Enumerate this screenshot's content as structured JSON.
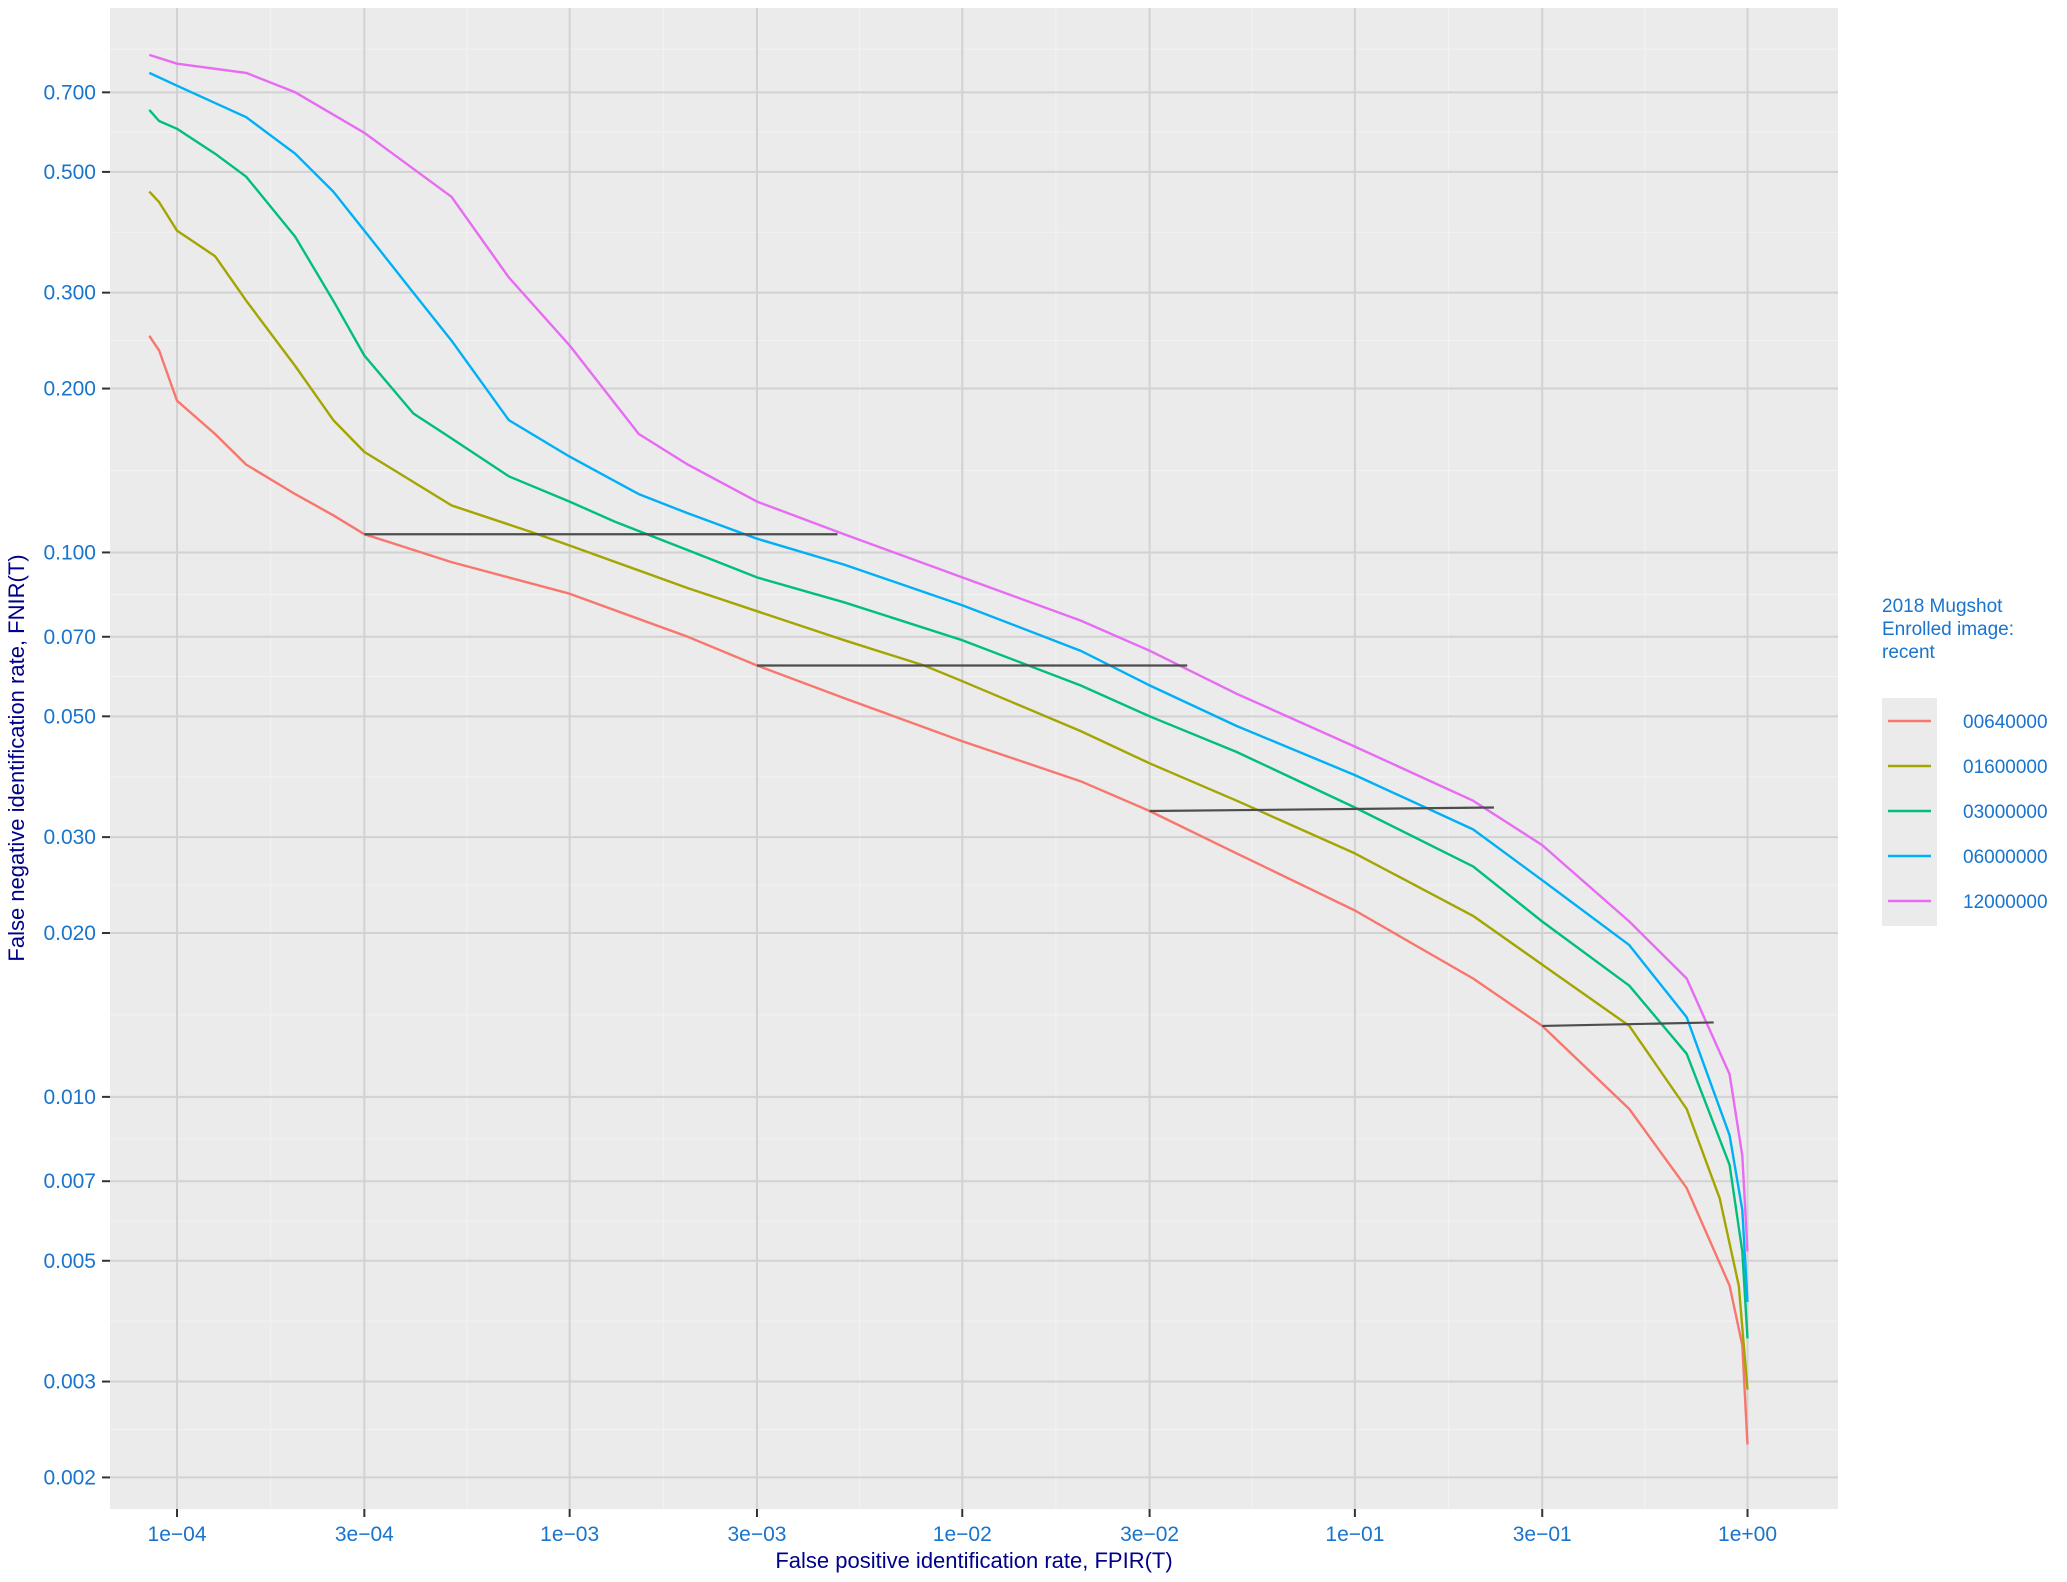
{
  "chart_data": {
    "type": "line",
    "xlabel": "False positive identification rate, FPIR(T)",
    "ylabel": "False negative identification rate, FNIR(T)",
    "x_scale": "log10",
    "y_scale": "log10",
    "xlim": [
      6.75e-05,
      1.7
    ],
    "ylim": [
      0.00175,
      1.0
    ],
    "x_ticks": [
      0.0001,
      0.0003,
      0.001,
      0.003,
      0.01,
      0.03,
      0.1,
      0.3,
      1
    ],
    "x_tick_labels": [
      "1e−04",
      "3e−04",
      "1e−03",
      "3e−03",
      "1e−02",
      "3e−02",
      "1e−01",
      "3e−01",
      "1e+00"
    ],
    "y_ticks": [
      0.002,
      0.003,
      0.005,
      0.007,
      0.01,
      0.02,
      0.03,
      0.05,
      0.07,
      0.1,
      0.2,
      0.3,
      0.5,
      0.7
    ],
    "y_tick_labels": [
      "0.002",
      "0.003",
      "0.005",
      "0.007",
      "0.010",
      "0.020",
      "0.030",
      "0.050",
      "0.070",
      "0.100",
      "0.200",
      "0.300",
      "0.500",
      "0.700"
    ],
    "grid": true,
    "legend": {
      "title_lines": [
        "2018 Mugshot",
        "Enrolled image:",
        "recent"
      ],
      "position": "right"
    },
    "colors": {
      "panel_background": "#EBEBEB",
      "major_grid": "#D2D2D2",
      "minor_grid": "#F3F3F3",
      "tick_text": "#1874CD",
      "axis_title": "#00008B",
      "connector": "#4D4D4D"
    },
    "series": [
      {
        "name": "00640000",
        "color": "#F8766D",
        "points": [
          [
            8.5e-05,
            0.25
          ],
          [
            9e-05,
            0.235
          ],
          [
            0.0001,
            0.19
          ],
          [
            0.000125,
            0.165
          ],
          [
            0.00015,
            0.145
          ],
          [
            0.0002,
            0.128
          ],
          [
            0.00025,
            0.117
          ],
          [
            0.0003,
            0.108
          ],
          [
            0.0005,
            0.096
          ],
          [
            0.001,
            0.084
          ],
          [
            0.002,
            0.07
          ],
          [
            0.003,
            0.062
          ],
          [
            0.005,
            0.054
          ],
          [
            0.01,
            0.045
          ],
          [
            0.02,
            0.038
          ],
          [
            0.03,
            0.0335
          ],
          [
            0.05,
            0.028
          ],
          [
            0.1,
            0.022
          ],
          [
            0.2,
            0.0165
          ],
          [
            0.3,
            0.0135
          ],
          [
            0.5,
            0.0095
          ],
          [
            0.7,
            0.0068
          ],
          [
            0.9,
            0.0045
          ],
          [
            0.97,
            0.0035
          ],
          [
            1.0,
            0.0023
          ]
        ]
      },
      {
        "name": "01600000",
        "color": "#A3A500",
        "points": [
          [
            8.5e-05,
            0.46
          ],
          [
            9e-05,
            0.44
          ],
          [
            0.0001,
            0.39
          ],
          [
            0.000125,
            0.35
          ],
          [
            0.00015,
            0.29
          ],
          [
            0.0002,
            0.22
          ],
          [
            0.00025,
            0.175
          ],
          [
            0.0003,
            0.153
          ],
          [
            0.0005,
            0.122
          ],
          [
            0.0008,
            0.109
          ],
          [
            0.001,
            0.103
          ],
          [
            0.002,
            0.086
          ],
          [
            0.003,
            0.078
          ],
          [
            0.005,
            0.069
          ],
          [
            0.008,
            0.062
          ],
          [
            0.01,
            0.058
          ],
          [
            0.02,
            0.047
          ],
          [
            0.03,
            0.041
          ],
          [
            0.05,
            0.035
          ],
          [
            0.1,
            0.028
          ],
          [
            0.2,
            0.0215
          ],
          [
            0.3,
            0.0175
          ],
          [
            0.5,
            0.0135
          ],
          [
            0.7,
            0.0095
          ],
          [
            0.85,
            0.0065
          ],
          [
            0.95,
            0.0045
          ],
          [
            1.0,
            0.0029
          ]
        ]
      },
      {
        "name": "03000000",
        "color": "#00BF7D",
        "points": [
          [
            8.5e-05,
            0.65
          ],
          [
            9e-05,
            0.62
          ],
          [
            0.0001,
            0.6
          ],
          [
            0.000125,
            0.54
          ],
          [
            0.00015,
            0.49
          ],
          [
            0.0002,
            0.38
          ],
          [
            0.00025,
            0.29
          ],
          [
            0.0003,
            0.23
          ],
          [
            0.0004,
            0.18
          ],
          [
            0.0005,
            0.162
          ],
          [
            0.0007,
            0.138
          ],
          [
            0.001,
            0.124
          ],
          [
            0.0013,
            0.114
          ],
          [
            0.002,
            0.101
          ],
          [
            0.003,
            0.09
          ],
          [
            0.005,
            0.081
          ],
          [
            0.01,
            0.069
          ],
          [
            0.02,
            0.057
          ],
          [
            0.03,
            0.05
          ],
          [
            0.05,
            0.043
          ],
          [
            0.1,
            0.034
          ],
          [
            0.2,
            0.0265
          ],
          [
            0.3,
            0.021
          ],
          [
            0.5,
            0.016
          ],
          [
            0.7,
            0.012
          ],
          [
            0.9,
            0.0075
          ],
          [
            0.97,
            0.0052
          ],
          [
            1.0,
            0.0036
          ]
        ]
      },
      {
        "name": "06000000",
        "color": "#00B0F6",
        "points": [
          [
            8.5e-05,
            0.76
          ],
          [
            0.0001,
            0.72
          ],
          [
            0.00015,
            0.63
          ],
          [
            0.0002,
            0.54
          ],
          [
            0.00025,
            0.46
          ],
          [
            0.0003,
            0.39
          ],
          [
            0.0004,
            0.3
          ],
          [
            0.0005,
            0.245
          ],
          [
            0.0007,
            0.175
          ],
          [
            0.001,
            0.15
          ],
          [
            0.0015,
            0.128
          ],
          [
            0.002,
            0.118
          ],
          [
            0.003,
            0.106
          ],
          [
            0.005,
            0.095
          ],
          [
            0.01,
            0.08
          ],
          [
            0.02,
            0.066
          ],
          [
            0.03,
            0.057
          ],
          [
            0.05,
            0.048
          ],
          [
            0.1,
            0.039
          ],
          [
            0.2,
            0.031
          ],
          [
            0.3,
            0.025
          ],
          [
            0.5,
            0.019
          ],
          [
            0.7,
            0.014
          ],
          [
            0.9,
            0.0085
          ],
          [
            0.97,
            0.0062
          ],
          [
            1.0,
            0.0042
          ]
        ]
      },
      {
        "name": "12000000",
        "color": "#E76BF3",
        "points": [
          [
            8.5e-05,
            0.82
          ],
          [
            0.0001,
            0.79
          ],
          [
            0.00015,
            0.76
          ],
          [
            0.0002,
            0.7
          ],
          [
            0.0003,
            0.59
          ],
          [
            0.0005,
            0.45
          ],
          [
            0.0007,
            0.32
          ],
          [
            0.001,
            0.24
          ],
          [
            0.0015,
            0.165
          ],
          [
            0.002,
            0.145
          ],
          [
            0.003,
            0.124
          ],
          [
            0.005,
            0.108
          ],
          [
            0.01,
            0.09
          ],
          [
            0.02,
            0.075
          ],
          [
            0.03,
            0.066
          ],
          [
            0.05,
            0.055
          ],
          [
            0.1,
            0.044
          ],
          [
            0.2,
            0.035
          ],
          [
            0.3,
            0.029
          ],
          [
            0.5,
            0.021
          ],
          [
            0.7,
            0.0165
          ],
          [
            0.9,
            0.011
          ],
          [
            0.97,
            0.0078
          ],
          [
            1.0,
            0.0052
          ]
        ]
      }
    ],
    "connectors": [
      {
        "x": [
          0.0003,
          0.00481
        ],
        "y": [
          0.108,
          0.108
        ]
      },
      {
        "x": [
          0.003,
          0.0374
        ],
        "y": [
          0.062,
          0.062
        ]
      },
      {
        "x": [
          0.03,
          0.226
        ],
        "y": [
          0.0335,
          0.034
        ]
      },
      {
        "x": [
          0.3,
          0.82
        ],
        "y": [
          0.0135,
          0.0137
        ]
      }
    ]
  }
}
